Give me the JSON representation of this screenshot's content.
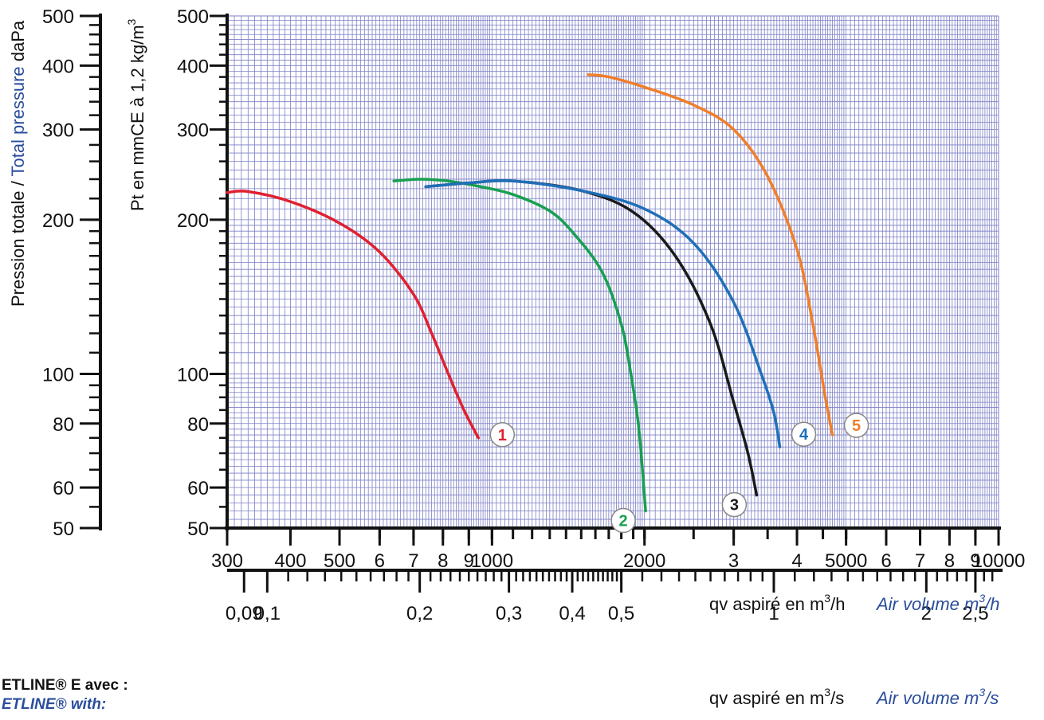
{
  "chart_data": {
    "type": "line",
    "y_scale": "log",
    "x_scale": "log",
    "left_axis_title_part1": "Pression totale / ",
    "left_axis_title_part2": "Total pressure",
    "left_axis_title_part3": " daPa",
    "left_axis_ticks": [
      "500",
      "400",
      "300",
      "200",
      "100",
      "80",
      "60",
      "50"
    ],
    "inner_axis_title": "Pt en mmCE à 1,2 kg/m",
    "inner_axis_title_sup": "3",
    "inner_axis_ticks": [
      "500",
      "400",
      "300",
      "200",
      "100",
      "80",
      "60",
      "50"
    ],
    "ylim": [
      50,
      500
    ],
    "xlim": [
      300,
      10000
    ],
    "x_ticks_h": [
      {
        "v": 300,
        "label": "300"
      },
      {
        "v": 400,
        "label": "400"
      },
      {
        "v": 500,
        "label": "500"
      },
      {
        "v": 600,
        "label": "6"
      },
      {
        "v": 700,
        "label": "7"
      },
      {
        "v": 800,
        "label": "8"
      },
      {
        "v": 900,
        "label": "9"
      },
      {
        "v": 1000,
        "label": "1000"
      },
      {
        "v": 2000,
        "label": "2000"
      },
      {
        "v": 3000,
        "label": "3"
      },
      {
        "v": 4000,
        "label": "4"
      },
      {
        "v": 5000,
        "label": "5000"
      },
      {
        "v": 6000,
        "label": "6"
      },
      {
        "v": 7000,
        "label": "7"
      },
      {
        "v": 8000,
        "label": "8"
      },
      {
        "v": 9000,
        "label": "9"
      },
      {
        "v": 10000,
        "label": "10000"
      }
    ],
    "x_title_h_fr": "qv aspiré en m",
    "x_title_h_fr_sup": "3",
    "x_title_h_fr_end": "/h",
    "x_title_h_en": "Air volume m",
    "x_title_h_en_sup": "3",
    "x_title_h_en_end": "/h",
    "x_ticks_s": [
      {
        "v": 0.09,
        "label": "0,09"
      },
      {
        "v": 0.1,
        "label": "0,1"
      },
      {
        "v": 0.2,
        "label": "0,2"
      },
      {
        "v": 0.3,
        "label": "0,3"
      },
      {
        "v": 0.4,
        "label": "0,4"
      },
      {
        "v": 0.5,
        "label": "0,5"
      },
      {
        "v": 1,
        "label": "1"
      },
      {
        "v": 2,
        "label": "2"
      },
      {
        "v": 2.5,
        "label": "2,5"
      }
    ],
    "x_title_s_fr": "qv aspiré en m",
    "x_title_s_fr_sup": "3",
    "x_title_s_fr_end": "/s",
    "x_title_s_en": "Air volume m",
    "x_title_s_en_sup": "3",
    "x_title_s_en_end": "/s",
    "series": [
      {
        "label": "1",
        "color": "#e0202f",
        "x": [
          300,
          330,
          400,
          500,
          600,
          700,
          760,
          820,
          880,
          940
        ],
        "y": [
          226,
          227,
          217,
          197,
          173,
          143,
          120,
          100,
          85,
          75
        ]
      },
      {
        "label": "2",
        "color": "#17a050",
        "x": [
          640,
          720,
          820,
          950,
          1100,
          1300,
          1450,
          1650,
          1800,
          1880,
          1950,
          2010
        ],
        "y": [
          238,
          240,
          238,
          232,
          224,
          208,
          188,
          158,
          125,
          100,
          78,
          54
        ]
      },
      {
        "label": "3",
        "color": "#1a1a1a",
        "x": [
          740,
          900,
          1100,
          1500,
          1900,
          2300,
          2700,
          3000,
          3200,
          3330
        ],
        "y": [
          232,
          236,
          238,
          228,
          207,
          170,
          125,
          88,
          70,
          58
        ]
      },
      {
        "label": "4",
        "color": "#1f6fb8",
        "x": [
          740,
          900,
          1100,
          1500,
          2000,
          2500,
          3000,
          3400,
          3600,
          3700
        ],
        "y": [
          232,
          236,
          238,
          228,
          210,
          180,
          138,
          100,
          84,
          72
        ]
      },
      {
        "label": "5",
        "color": "#f07e2a",
        "x": [
          1550,
          1700,
          2000,
          2500,
          3000,
          3500,
          4000,
          4300,
          4550,
          4700
        ],
        "y": [
          384,
          380,
          363,
          335,
          300,
          243,
          175,
          125,
          90,
          76
        ]
      }
    ]
  },
  "product_line_1": "ETLINE® E avec :",
  "product_line_2": "ETLINE® with:"
}
